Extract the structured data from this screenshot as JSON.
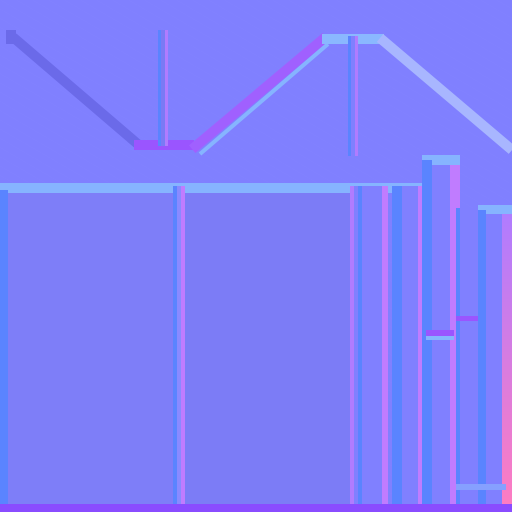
{
  "texture": {
    "kind": "normal-map",
    "colors": {
      "flat": "#8080ff",
      "flat_dark": "#7c7cf6",
      "edge_top": "#86b4ff",
      "edge_left": "#5a84ff",
      "edge_right": "#b07cff",
      "edge_bottom": "#8a5cff",
      "edge_far_right": "#ff7cc0",
      "roof_left_edge": "#6b6ae9",
      "roof_right_edge": "#a8b6ff",
      "bottom_strip": "#8a4cff"
    }
  }
}
